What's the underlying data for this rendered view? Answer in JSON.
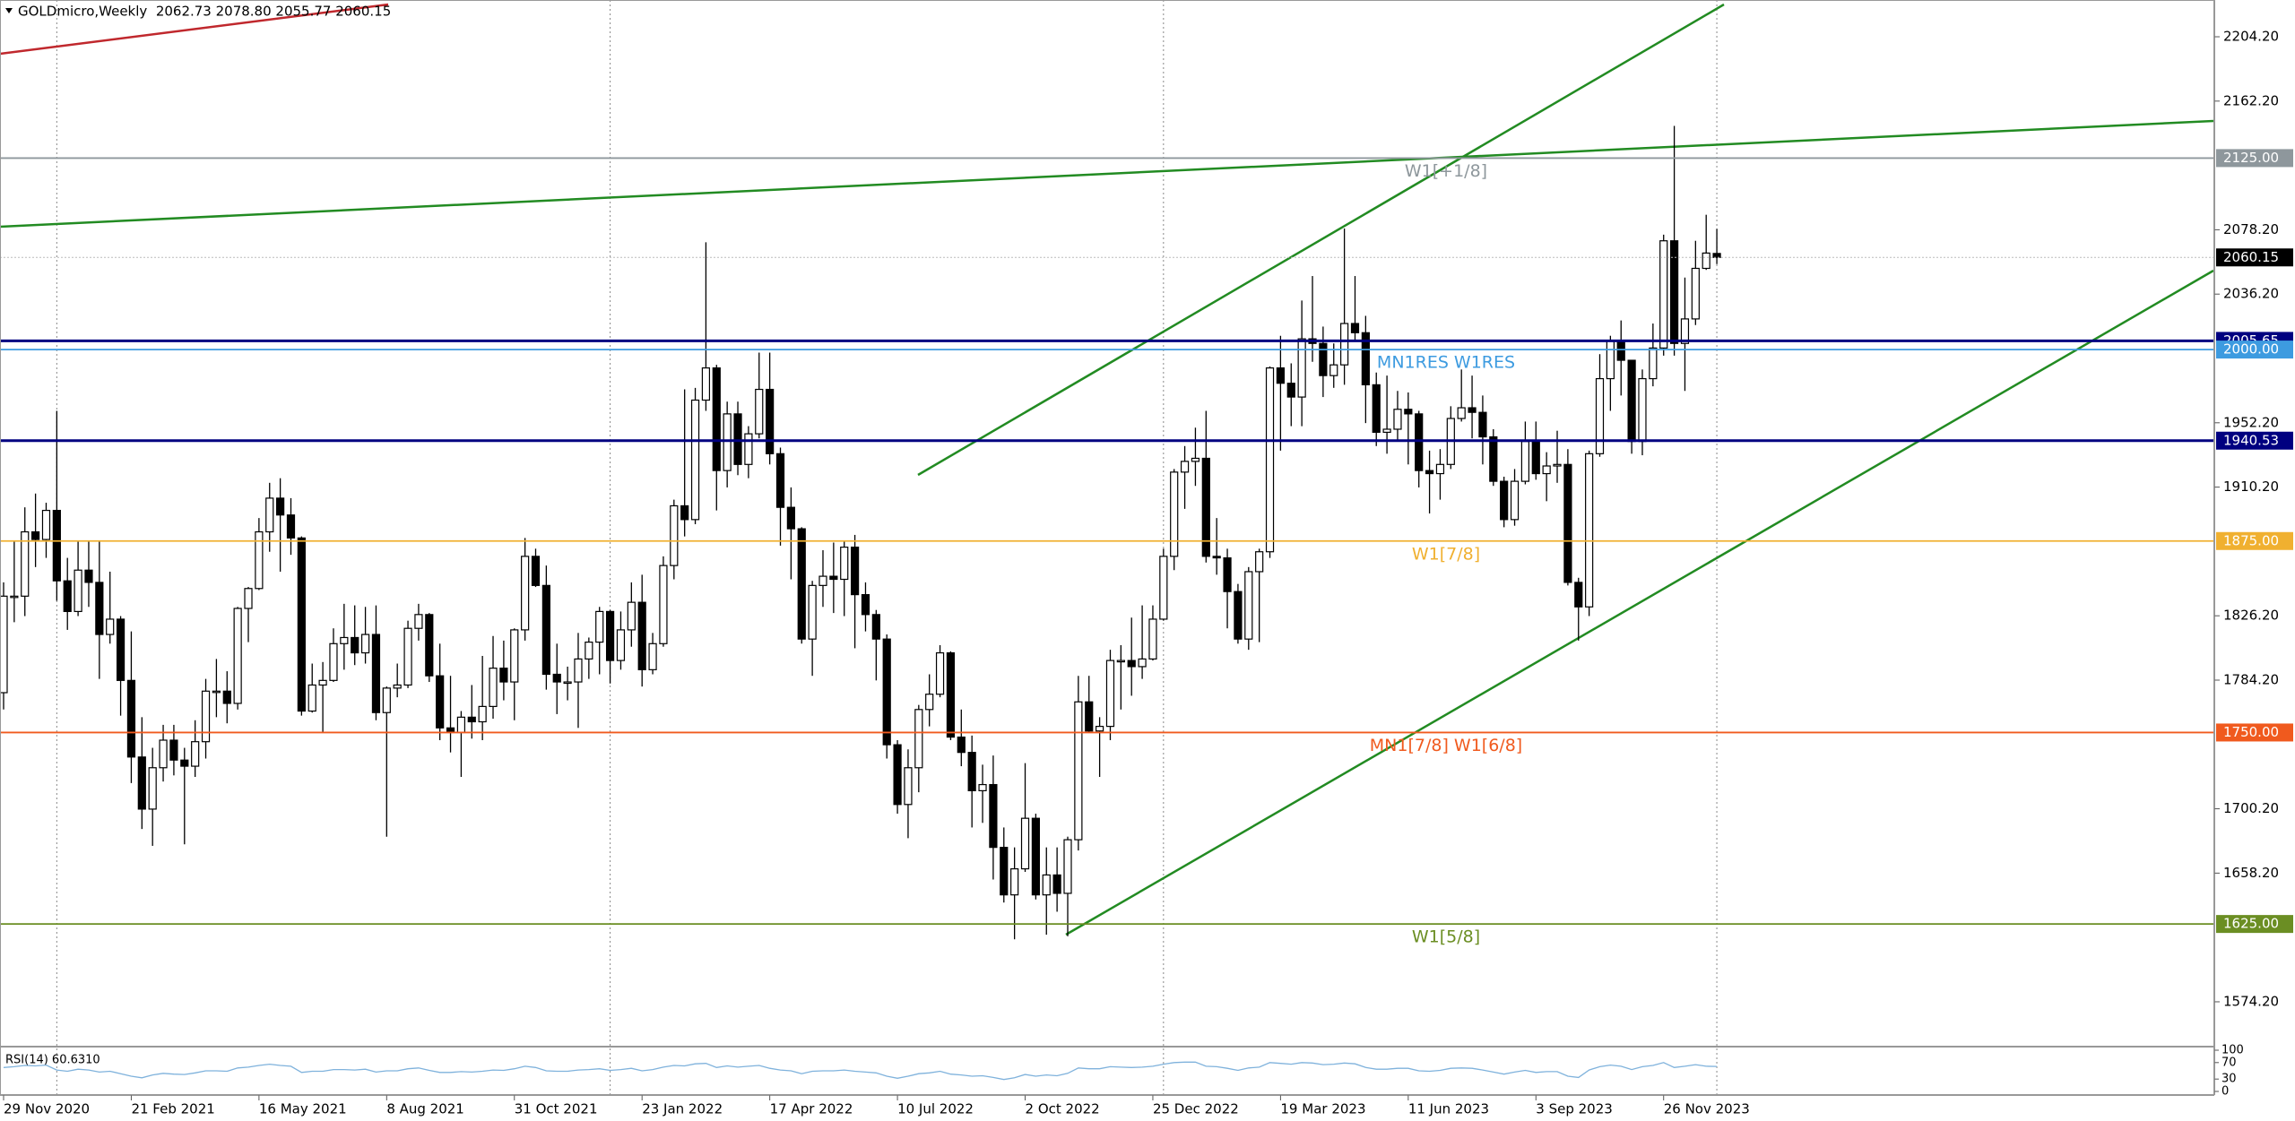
{
  "chart_data": {
    "type": "candlestick",
    "title": "GOLDmicro,Weekly  2062.73 2078.80 2055.77 2060.15",
    "categories": [
      "29 Nov 2020",
      null,
      null,
      null,
      null,
      null,
      null,
      null,
      null,
      null,
      null,
      null,
      "21 Feb 2021",
      null,
      null,
      null,
      null,
      null,
      null,
      null,
      null,
      null,
      null,
      null,
      "16 May 2021",
      null,
      null,
      null,
      null,
      null,
      null,
      null,
      null,
      null,
      null,
      null,
      "8 Aug 2021",
      null,
      null,
      null,
      null,
      null,
      null,
      null,
      null,
      null,
      null,
      null,
      "31 Oct 2021",
      null,
      null,
      null,
      null,
      null,
      null,
      null,
      null,
      null,
      null,
      null,
      "23 Jan 2022",
      null,
      null,
      null,
      null,
      null,
      null,
      null,
      null,
      null,
      null,
      null,
      "17 Apr 2022",
      null,
      null,
      null,
      null,
      null,
      null,
      null,
      null,
      null,
      null,
      null,
      "10 Jul 2022",
      null,
      null,
      null,
      null,
      null,
      null,
      null,
      null,
      null,
      null,
      null,
      "2 Oct 2022",
      null,
      null,
      null,
      null,
      null,
      null,
      null,
      null,
      null,
      null,
      null,
      "25 Dec 2022",
      null,
      null,
      null,
      null,
      null,
      null,
      null,
      null,
      null,
      null,
      null,
      "19 Mar 2023",
      null,
      null,
      null,
      null,
      null,
      null,
      null,
      null,
      null,
      null,
      null,
      "11 Jun 2023",
      null,
      null,
      null,
      null,
      null,
      null,
      null,
      null,
      null,
      null,
      null,
      "3 Sep 2023",
      null,
      null,
      null,
      null,
      null,
      null,
      null,
      null,
      null,
      null,
      null,
      "26 Nov 2023",
      null,
      null,
      null,
      null,
      null
    ],
    "open": [
      1776,
      1839,
      1839,
      1881,
      1876,
      1895,
      1849,
      1829,
      1856,
      1848,
      1814,
      1824,
      1784,
      1734,
      1700,
      1727,
      1745,
      1732,
      1728,
      1744,
      1777,
      1777,
      1769,
      1831,
      1844,
      1881,
      1903,
      1892,
      1877,
      1764,
      1781,
      1784,
      1808,
      1812,
      1802,
      1814,
      1763,
      1779,
      1781,
      1818,
      1827,
      1787,
      1753,
      1750,
      1760,
      1757,
      1767,
      1792,
      1783,
      1817,
      1865,
      1846,
      1788,
      1783,
      1783,
      1798,
      1809,
      1829,
      1797,
      1817,
      1835,
      1791,
      1808,
      1859,
      1898,
      1889,
      1967,
      1988,
      1921,
      1958,
      1925,
      1945,
      1974,
      1932,
      1897,
      1883,
      1811,
      1846,
      1852,
      1850,
      1871,
      1840,
      1827,
      1811,
      1742,
      1703,
      1727,
      1765,
      1775,
      1802,
      1747,
      1737,
      1712,
      1716,
      1675,
      1644,
      1661,
      1694,
      1644,
      1657,
      1645,
      1680,
      1770,
      1751,
      1754,
      1797,
      1797,
      1793,
      1798,
      1824,
      1865,
      1920,
      1927,
      1929,
      1865,
      1864,
      1842,
      1811,
      1855,
      1868,
      1988,
      1978,
      1969,
      2007,
      2004,
      1983,
      1990,
      2017,
      2011,
      1977,
      1946,
      1948,
      1961,
      1958,
      1921,
      1919,
      1925,
      1955,
      1962,
      1959,
      1943,
      1914,
      1889,
      1914,
      1940,
      1919,
      1924,
      1925,
      1848,
      1832,
      1932,
      1981,
      2006,
      1993,
      1940,
      1981,
      2001,
      2071,
      2004,
      2020,
      2053,
      2062.73
    ],
    "high": [
      1848,
      1875,
      1897,
      1906,
      1900,
      1960,
      1864,
      1875,
      1875,
      1875,
      1855,
      1826,
      1816,
      1760,
      1740,
      1755,
      1755,
      1740,
      1758,
      1785,
      1798,
      1790,
      1832,
      1845,
      1890,
      1913,
      1916,
      1903,
      1878,
      1795,
      1796,
      1818,
      1834,
      1833,
      1832,
      1833,
      1780,
      1795,
      1823,
      1834,
      1828,
      1808,
      1787,
      1764,
      1781,
      1800,
      1813,
      1810,
      1818,
      1877,
      1870,
      1859,
      1808,
      1793,
      1815,
      1812,
      1832,
      1830,
      1829,
      1848,
      1853,
      1815,
      1865,
      1902,
      1974,
      1975,
      2070,
      1990,
      1966,
      1966,
      1950,
      1998,
      1998,
      1936,
      1910,
      1884,
      1849,
      1869,
      1874,
      1875,
      1879,
      1848,
      1830,
      1814,
      1745,
      1739,
      1768,
      1788,
      1807,
      1803,
      1765,
      1748,
      1729,
      1735,
      1688,
      1675,
      1730,
      1697,
      1675,
      1675,
      1682,
      1787,
      1787,
      1760,
      1804,
      1807,
      1825,
      1833,
      1833,
      1870,
      1922,
      1937,
      1949,
      1960,
      1890,
      1870,
      1847,
      1858,
      1870,
      1989,
      2009,
      1991,
      2032,
      2048,
      2015,
      2004,
      2079,
      2048,
      2022,
      1985,
      1983,
      1973,
      1972,
      1960,
      1934,
      1935,
      1963,
      1987,
      1983,
      1970,
      1948,
      1917,
      1922,
      1953,
      1953,
      1933,
      1947,
      1935,
      1851,
      1934,
      1997,
      2009,
      2019,
      1993,
      1987,
      2017,
      2075,
      2146,
      2047,
      2071,
      2088,
      2078.8
    ],
    "low": [
      1765,
      1822,
      1826,
      1858,
      1864,
      1836,
      1817,
      1826,
      1832,
      1785,
      1808,
      1761,
      1717,
      1687,
      1676,
      1718,
      1722,
      1677,
      1721,
      1733,
      1760,
      1756,
      1765,
      1809,
      1843,
      1868,
      1855,
      1866,
      1761,
      1763,
      1750,
      1783,
      1791,
      1794,
      1795,
      1758,
      1682,
      1773,
      1779,
      1810,
      1783,
      1745,
      1737,
      1721,
      1746,
      1745,
      1759,
      1771,
      1758,
      1810,
      1845,
      1778,
      1762,
      1771,
      1753,
      1785,
      1788,
      1782,
      1791,
      1806,
      1780,
      1788,
      1806,
      1850,
      1878,
      1886,
      1960,
      1895,
      1910,
      1918,
      1916,
      1942,
      1925,
      1872,
      1850,
      1808,
      1787,
      1832,
      1828,
      1826,
      1805,
      1816,
      1784,
      1733,
      1697,
      1681,
      1711,
      1754,
      1773,
      1745,
      1728,
      1688,
      1691,
      1654,
      1639,
      1615,
      1659,
      1641,
      1618,
      1633,
      1617,
      1673,
      1750,
      1721,
      1745,
      1765,
      1774,
      1785,
      1797,
      1823,
      1856,
      1896,
      1911,
      1861,
      1853,
      1818,
      1808,
      1804,
      1809,
      1864,
      1934,
      1950,
      1950,
      1992,
      1969,
      1975,
      1977,
      2006,
      1952,
      1937,
      1932,
      1940,
      1925,
      1910,
      1893,
      1902,
      1922,
      1953,
      1942,
      1925,
      1911,
      1884,
      1885,
      1912,
      1915,
      1901,
      1913,
      1846,
      1810,
      1826,
      1930,
      1960,
      1970,
      1932,
      1931,
      1976,
      1996,
      1996,
      1973,
      2016,
      2052,
      2055.77
    ],
    "close": [
      1839,
      1839,
      1881,
      1876,
      1895,
      1849,
      1829,
      1856,
      1848,
      1814,
      1824,
      1784,
      1734,
      1700,
      1727,
      1745,
      1732,
      1728,
      1744,
      1777,
      1777,
      1769,
      1831,
      1844,
      1881,
      1903,
      1892,
      1877,
      1764,
      1781,
      1784,
      1808,
      1812,
      1802,
      1814,
      1763,
      1779,
      1781,
      1818,
      1827,
      1787,
      1753,
      1750,
      1760,
      1757,
      1767,
      1792,
      1783,
      1817,
      1865,
      1846,
      1788,
      1783,
      1783,
      1798,
      1809,
      1829,
      1797,
      1817,
      1835,
      1791,
      1808,
      1859,
      1898,
      1889,
      1967,
      1988,
      1921,
      1958,
      1925,
      1945,
      1974,
      1932,
      1897,
      1883,
      1811,
      1846,
      1852,
      1850,
      1871,
      1840,
      1827,
      1811,
      1742,
      1703,
      1727,
      1765,
      1775,
      1802,
      1747,
      1737,
      1712,
      1716,
      1675,
      1644,
      1661,
      1694,
      1644,
      1657,
      1645,
      1680,
      1770,
      1751,
      1754,
      1797,
      1797,
      1793,
      1798,
      1824,
      1865,
      1920,
      1927,
      1929,
      1865,
      1864,
      1842,
      1811,
      1855,
      1868,
      1988,
      1978,
      1969,
      2007,
      2004,
      1983,
      1990,
      2017,
      2011,
      1977,
      1946,
      1948,
      1961,
      1958,
      1921,
      1919,
      1925,
      1955,
      1962,
      1959,
      1943,
      1914,
      1889,
      1914,
      1940,
      1919,
      1924,
      1925,
      1848,
      1832,
      1932,
      1981,
      2006,
      1993,
      1940,
      1981,
      2001,
      2071,
      2004,
      2020,
      2053,
      2063,
      2060.15
    ],
    "ylim": [
      1546.1,
      2228.2
    ],
    "yticks": [
      {
        "value": 2204.2,
        "label": "2204.20"
      },
      {
        "value": 2162.2,
        "label": "2162.20"
      },
      {
        "value": 2078.2,
        "label": "2078.20"
      },
      {
        "value": 2036.2,
        "label": "2036.20"
      },
      {
        "value": 1952.2,
        "label": "1952.20"
      },
      {
        "value": 1910.2,
        "label": "1910.20"
      },
      {
        "value": 1826.2,
        "label": "1826.20"
      },
      {
        "value": 1784.2,
        "label": "1784.20"
      },
      {
        "value": 1700.2,
        "label": "1700.20"
      },
      {
        "value": 1658.2,
        "label": "1658.20"
      },
      {
        "value": 1574.2,
        "label": "1574.20"
      }
    ],
    "levels": [
      {
        "price": {
          "value": 2125,
          "label": "2125.00"
        },
        "name": "W1[+1/8]",
        "color": "#8e979c"
      },
      {
        "price": {
          "value": 2005.65,
          "label": "2005.65"
        },
        "color": "#000080"
      },
      {
        "price": {
          "value": 2000,
          "label": "2000.00"
        },
        "name": "MN1RES W1RES",
        "color": "#3d9be0"
      },
      {
        "price": {
          "value": 1940.53,
          "label": "1940.53"
        },
        "color": "#000080"
      },
      {
        "price": {
          "value": 1875,
          "label": "1875.00"
        },
        "name": "W1[7/8]",
        "color": "#f0b030"
      },
      {
        "price": {
          "value": 1750,
          "label": "1750.00"
        },
        "name": "MN1[7/8] W1[6/8]",
        "color": "#f05a1e"
      },
      {
        "price": {
          "value": 1625,
          "label": "1625.00"
        },
        "name": "W1[5/8]",
        "color": "#6b8e23"
      }
    ],
    "current_price": {
      "value": 2060.15,
      "label": "2060.15"
    },
    "rsi": {
      "label": "RSI(14) 60.6310",
      "color": "#7fb2dc",
      "ylim": [
        0,
        100
      ],
      "yticks": [
        100,
        70,
        30,
        0
      ],
      "values": [
        58,
        60,
        63,
        62,
        64,
        52,
        49,
        54,
        52,
        47,
        49,
        43,
        37,
        33,
        40,
        44,
        42,
        41,
        45,
        50,
        50,
        49,
        57,
        59,
        63,
        66,
        63,
        61,
        46,
        49,
        49,
        53,
        53,
        52,
        54,
        47,
        50,
        50,
        55,
        57,
        51,
        46,
        46,
        48,
        47,
        49,
        52,
        51,
        55,
        61,
        58,
        50,
        49,
        49,
        52,
        53,
        55,
        51,
        53,
        56,
        50,
        53,
        59,
        63,
        62,
        67,
        68,
        58,
        62,
        59,
        61,
        63,
        56,
        52,
        50,
        43,
        49,
        50,
        50,
        52,
        49,
        47,
        45,
        37,
        32,
        37,
        43,
        45,
        49,
        42,
        40,
        37,
        38,
        34,
        29,
        33,
        41,
        37,
        40,
        38,
        44,
        57,
        55,
        55,
        60,
        59,
        58,
        59,
        61,
        66,
        70,
        71,
        71,
        61,
        60,
        56,
        51,
        57,
        59,
        70,
        68,
        66,
        70,
        69,
        65,
        66,
        69,
        67,
        58,
        54,
        54,
        56,
        56,
        50,
        49,
        51,
        56,
        57,
        56,
        52,
        47,
        42,
        47,
        51,
        46,
        48,
        48,
        37,
        34,
        52,
        60,
        64,
        61,
        53,
        60,
        63,
        70,
        58,
        61,
        65,
        61,
        60.631
      ]
    }
  }
}
